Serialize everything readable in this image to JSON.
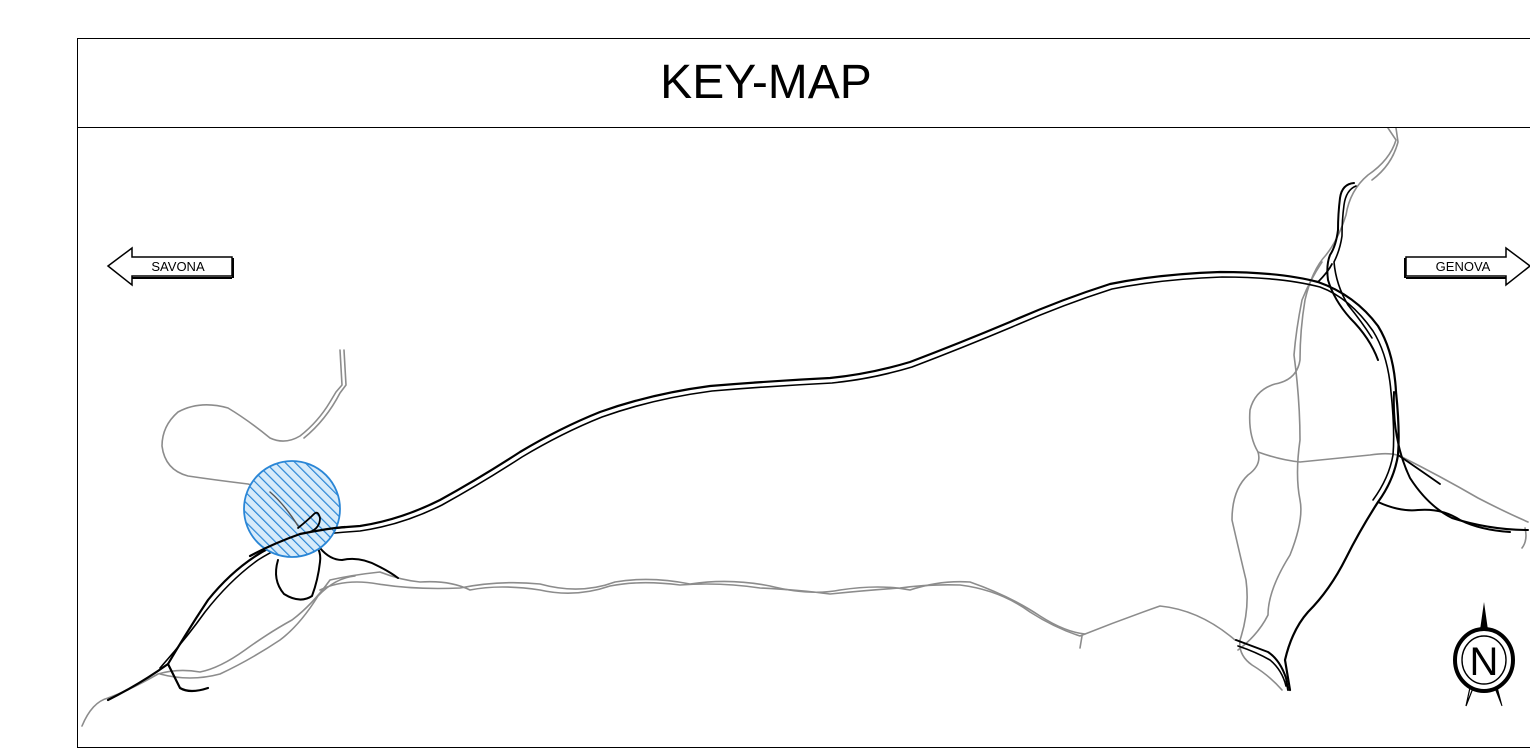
{
  "title": "KEY-MAP",
  "labels": {
    "west": "SAVONA",
    "east": "GENOVA",
    "north": "N"
  },
  "icons": {
    "west_arrow": "arrow-left-icon",
    "east_arrow": "arrow-right-icon",
    "north_arrow": "north-arrow-icon",
    "location_marker": "hatched-circle-marker"
  },
  "colors": {
    "highway": "#000000",
    "secondary_road": "#8c8c8c",
    "marker": "#2a86d6",
    "marker_fill": "#d7ebfa"
  }
}
